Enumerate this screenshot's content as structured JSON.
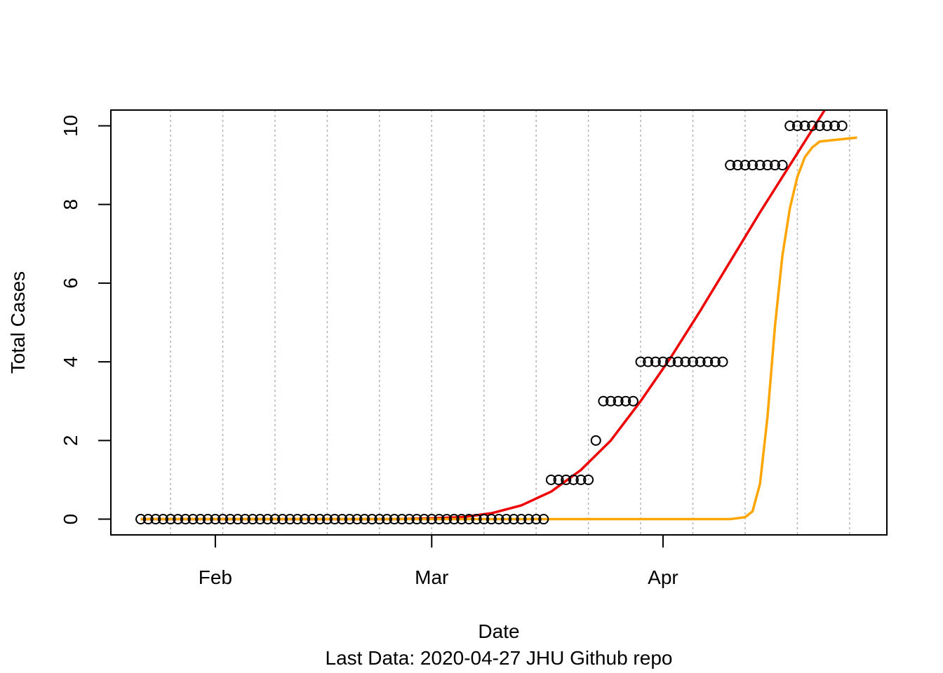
{
  "chart_data": {
    "type": "scatter",
    "xlabel": "Date",
    "ylabel": "Total Cases",
    "caption": "Last Data: 2020-04-27  JHU Github repo",
    "x_start": "2020-01-22",
    "x_end": "2020-04-27",
    "xlim": [
      "2020-01-18",
      "2020-05-01"
    ],
    "ylim": [
      -0.4,
      10.4
    ],
    "y_ticks": [
      0,
      2,
      4,
      6,
      8,
      10
    ],
    "x_ticks": [
      {
        "date": "2020-02-01",
        "label": "Feb"
      },
      {
        "date": "2020-03-01",
        "label": "Mar"
      },
      {
        "date": "2020-04-01",
        "label": "Apr"
      }
    ],
    "vertical_gridlines": [
      "2020-01-26",
      "2020-02-02",
      "2020-02-09",
      "2020-02-16",
      "2020-02-23",
      "2020-03-01",
      "2020-03-08",
      "2020-03-15",
      "2020-03-22",
      "2020-03-29",
      "2020-04-05",
      "2020-04-12",
      "2020-04-19",
      "2020-04-26"
    ],
    "grid": "vertical dotted gray lines, weekly",
    "series": [
      {
        "kind": "points",
        "marker": "open circle",
        "color": "#000000",
        "x_dates_start": "2020-01-22",
        "step_days": 1,
        "values": [
          0,
          0,
          0,
          0,
          0,
          0,
          0,
          0,
          0,
          0,
          0,
          0,
          0,
          0,
          0,
          0,
          0,
          0,
          0,
          0,
          0,
          0,
          0,
          0,
          0,
          0,
          0,
          0,
          0,
          0,
          0,
          0,
          0,
          0,
          0,
          0,
          0,
          0,
          0,
          0,
          0,
          0,
          0,
          0,
          0,
          0,
          0,
          0,
          0,
          0,
          0,
          0,
          0,
          0,
          0,
          1,
          1,
          1,
          1,
          1,
          1,
          2,
          3,
          3,
          3,
          3,
          3,
          4,
          4,
          4,
          4,
          4,
          4,
          4,
          4,
          4,
          4,
          4,
          4,
          9,
          9,
          9,
          9,
          9,
          9,
          9,
          9,
          10,
          10,
          10,
          10,
          10,
          10,
          10,
          10
        ]
      },
      {
        "kind": "line",
        "color": "#ee0000",
        "points": [
          {
            "x": "2020-01-22",
            "y": 0
          },
          {
            "x": "2020-02-25",
            "y": 0
          },
          {
            "x": "2020-03-01",
            "y": 0.02
          },
          {
            "x": "2020-03-05",
            "y": 0.05
          },
          {
            "x": "2020-03-09",
            "y": 0.15
          },
          {
            "x": "2020-03-13",
            "y": 0.35
          },
          {
            "x": "2020-03-17",
            "y": 0.7
          },
          {
            "x": "2020-03-21",
            "y": 1.25
          },
          {
            "x": "2020-03-25",
            "y": 2.0
          },
          {
            "x": "2020-03-29",
            "y": 3.0
          },
          {
            "x": "2020-04-02",
            "y": 4.1
          },
          {
            "x": "2020-04-06",
            "y": 5.3
          },
          {
            "x": "2020-04-10",
            "y": 6.55
          },
          {
            "x": "2020-04-14",
            "y": 7.8
          },
          {
            "x": "2020-04-18",
            "y": 9.0
          },
          {
            "x": "2020-04-22",
            "y": 10.2
          },
          {
            "x": "2020-04-23",
            "y": 10.5
          }
        ]
      },
      {
        "kind": "line",
        "color": "#ffa500",
        "points": [
          {
            "x": "2020-01-22",
            "y": 0
          },
          {
            "x": "2020-04-10",
            "y": 0
          },
          {
            "x": "2020-04-12",
            "y": 0.05
          },
          {
            "x": "2020-04-13",
            "y": 0.2
          },
          {
            "x": "2020-04-14",
            "y": 0.9
          },
          {
            "x": "2020-04-15",
            "y": 2.6
          },
          {
            "x": "2020-04-16",
            "y": 4.9
          },
          {
            "x": "2020-04-17",
            "y": 6.7
          },
          {
            "x": "2020-04-18",
            "y": 7.9
          },
          {
            "x": "2020-04-19",
            "y": 8.7
          },
          {
            "x": "2020-04-20",
            "y": 9.2
          },
          {
            "x": "2020-04-21",
            "y": 9.45
          },
          {
            "x": "2020-04-22",
            "y": 9.6
          },
          {
            "x": "2020-04-27",
            "y": 9.7
          }
        ]
      }
    ]
  }
}
